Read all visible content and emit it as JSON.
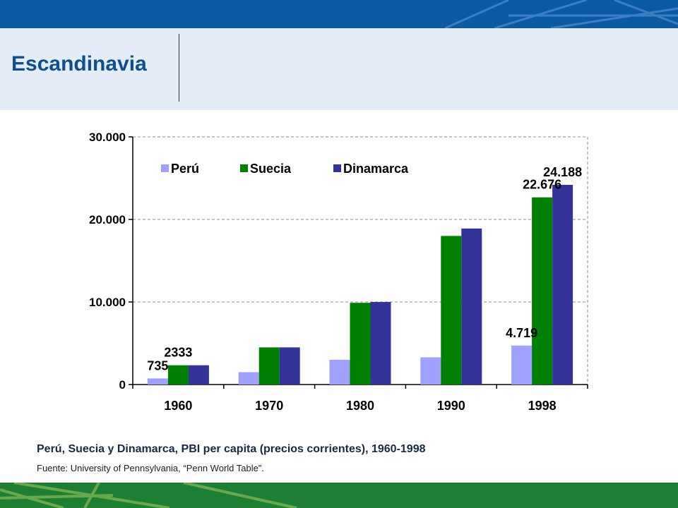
{
  "slide": {
    "title": "Escandinavia",
    "caption": "Perú, Suecia y Dinamarca, PBI per capita (precios corrientes), 1960-1998",
    "source": "Fuente: University of Pennsylvania, “Penn World Table”.",
    "colors": {
      "top_band": "#0a5aa3",
      "title_band": "#e4ecf7",
      "title_text": "#0e4f8f",
      "bottom_band": "#1e7e34"
    }
  },
  "chart_data": {
    "type": "bar",
    "categories": [
      "1960",
      "1970",
      "1980",
      "1990",
      "1998"
    ],
    "series": [
      {
        "name": "Perú",
        "color": "#a0a0ff",
        "values": [
          735,
          1500,
          3000,
          3300,
          4719
        ]
      },
      {
        "name": "Suecia",
        "color": "#008000",
        "values": [
          2333,
          4500,
          9900,
          18000,
          22676
        ]
      },
      {
        "name": "Dinamarca",
        "color": "#333399",
        "values": [
          2333,
          4500,
          10000,
          18900,
          24188
        ]
      }
    ],
    "ylim": [
      0,
      30000
    ],
    "yticks": [
      0,
      10000,
      20000,
      30000
    ],
    "ytick_labels": [
      "0",
      "10.000",
      "20.000",
      "30.000"
    ],
    "grid": true,
    "legend_position": "top-left",
    "data_labels": [
      {
        "category": "1960",
        "series": "Perú",
        "text": "735"
      },
      {
        "category": "1960",
        "series": "Suecia",
        "text": "2333"
      },
      {
        "category": "1998",
        "series": "Perú",
        "text": "4.719"
      },
      {
        "category": "1998",
        "series": "Suecia",
        "text": "22.676"
      },
      {
        "category": "1998",
        "series": "Dinamarca",
        "text": "24.188"
      }
    ]
  }
}
